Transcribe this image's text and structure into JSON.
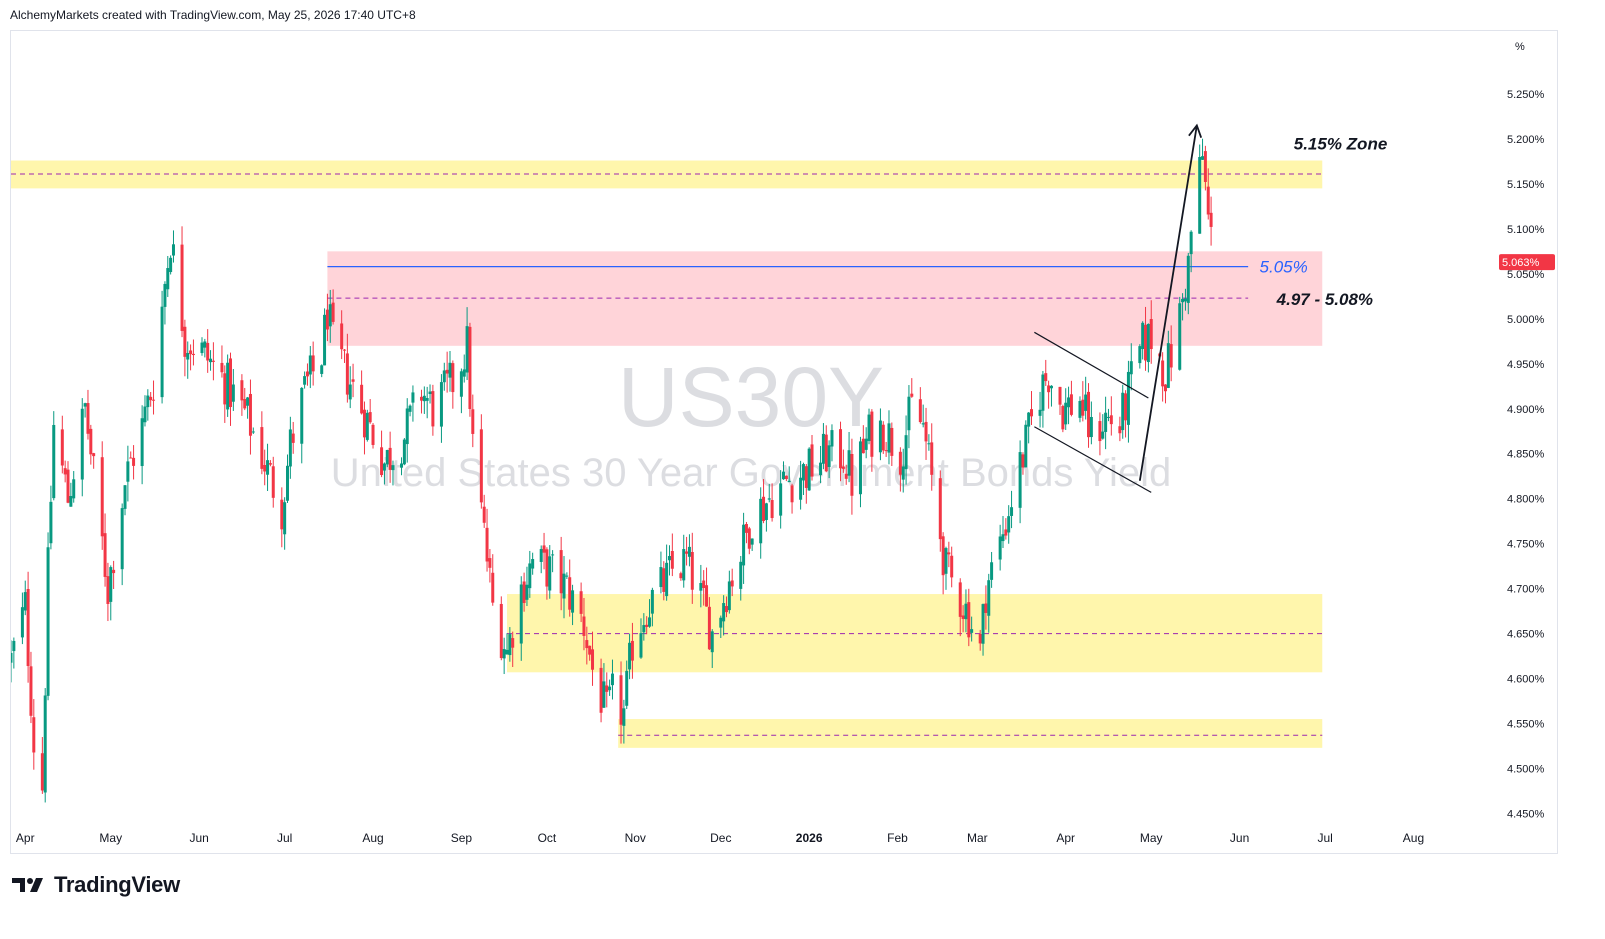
{
  "header": {
    "credit": "AlchemyMarkets created with TradingView.com, May 25, 2026 17:40 UTC+8"
  },
  "footer": {
    "brand": "TradingView",
    "logo_icon": "tradingview-logo-icon"
  },
  "colors": {
    "up": "#089981",
    "down": "#f23645",
    "supply_zone": "#fff59d",
    "resistance_zone": "#ffcdd2",
    "level_line": "#2962ff",
    "dashed_line": "#9c27b0",
    "last_price_bg": "#f23645"
  },
  "chart_data": {
    "type": "candlestick",
    "symbol_watermark": "US30Y",
    "description_watermark": "United States 30 Year Government Bonds Yield",
    "y_unit": "%",
    "ylim": [
      4.435,
      5.32
    ],
    "y_ticks": [
      "5.250%",
      "5.200%",
      "5.150%",
      "5.100%",
      "5.050%",
      "5.000%",
      "4.950%",
      "4.900%",
      "4.850%",
      "4.800%",
      "4.750%",
      "4.700%",
      "4.650%",
      "4.600%",
      "4.550%",
      "4.500%",
      "4.450%"
    ],
    "y_tick_values": [
      5.25,
      5.2,
      5.15,
      5.1,
      5.05,
      5.0,
      4.95,
      4.9,
      4.85,
      4.8,
      4.75,
      4.7,
      4.65,
      4.6,
      4.55,
      4.5,
      4.45
    ],
    "x_range": [
      "2025-03-27",
      "2026-08-31"
    ],
    "x_ticks": [
      {
        "label": "Apr",
        "date": "2025-04-01"
      },
      {
        "label": "May",
        "date": "2025-05-01"
      },
      {
        "label": "Jun",
        "date": "2025-06-01"
      },
      {
        "label": "Jul",
        "date": "2025-07-01"
      },
      {
        "label": "Aug",
        "date": "2025-08-01"
      },
      {
        "label": "Sep",
        "date": "2025-09-01"
      },
      {
        "label": "Oct",
        "date": "2025-10-01"
      },
      {
        "label": "Nov",
        "date": "2025-11-01"
      },
      {
        "label": "Dec",
        "date": "2025-12-01"
      },
      {
        "label": "2026",
        "date": "2026-01-01"
      },
      {
        "label": "Feb",
        "date": "2026-02-01"
      },
      {
        "label": "Mar",
        "date": "2026-03-01"
      },
      {
        "label": "Apr",
        "date": "2026-04-01"
      },
      {
        "label": "May",
        "date": "2026-05-01"
      },
      {
        "label": "Jun",
        "date": "2026-06-01"
      },
      {
        "label": "Jul",
        "date": "2026-07-01"
      },
      {
        "label": "Aug",
        "date": "2026-08-01"
      }
    ],
    "last_price": 5.063,
    "last_price_label": "5.063%",
    "close_path": [
      [
        "2025-03-27",
        4.62
      ],
      [
        "2025-04-01",
        4.68
      ],
      [
        "2025-04-04",
        4.53
      ],
      [
        "2025-04-07",
        4.48
      ],
      [
        "2025-04-09",
        4.72
      ],
      [
        "2025-04-11",
        4.88
      ],
      [
        "2025-04-16",
        4.8
      ],
      [
        "2025-04-22",
        4.9
      ],
      [
        "2025-04-30",
        4.7
      ],
      [
        "2025-05-06",
        4.82
      ],
      [
        "2025-05-12",
        4.88
      ],
      [
        "2025-05-16",
        4.93
      ],
      [
        "2025-05-20",
        5.04
      ],
      [
        "2025-05-22",
        5.09
      ],
      [
        "2025-05-27",
        4.98
      ],
      [
        "2025-06-03",
        4.96
      ],
      [
        "2025-06-10",
        4.93
      ],
      [
        "2025-06-18",
        4.89
      ],
      [
        "2025-06-24",
        4.84
      ],
      [
        "2025-06-30",
        4.79
      ],
      [
        "2025-07-03",
        4.86
      ],
      [
        "2025-07-08",
        4.92
      ],
      [
        "2025-07-14",
        4.96
      ],
      [
        "2025-07-16",
        5.01
      ],
      [
        "2025-07-18",
        4.97
      ],
      [
        "2025-07-24",
        4.93
      ],
      [
        "2025-07-31",
        4.88
      ],
      [
        "2025-08-05",
        4.84
      ],
      [
        "2025-08-12",
        4.87
      ],
      [
        "2025-08-18",
        4.92
      ],
      [
        "2025-08-22",
        4.9
      ],
      [
        "2025-08-29",
        4.93
      ],
      [
        "2025-09-03",
        4.97
      ],
      [
        "2025-09-05",
        4.86
      ],
      [
        "2025-09-09",
        4.76
      ],
      [
        "2025-09-12",
        4.68
      ],
      [
        "2025-09-17",
        4.63
      ],
      [
        "2025-09-22",
        4.7
      ],
      [
        "2025-09-26",
        4.73
      ],
      [
        "2025-10-02",
        4.72
      ],
      [
        "2025-10-08",
        4.7
      ],
      [
        "2025-10-14",
        4.66
      ],
      [
        "2025-10-17",
        4.61
      ],
      [
        "2025-10-22",
        4.56
      ],
      [
        "2025-10-24",
        4.58
      ],
      [
        "2025-10-28",
        4.56
      ],
      [
        "2025-10-31",
        4.64
      ],
      [
        "2025-11-05",
        4.68
      ],
      [
        "2025-11-10",
        4.7
      ],
      [
        "2025-11-14",
        4.72
      ],
      [
        "2025-11-19",
        4.73
      ],
      [
        "2025-11-24",
        4.69
      ],
      [
        "2025-11-28",
        4.65
      ],
      [
        "2025-12-03",
        4.7
      ],
      [
        "2025-12-08",
        4.74
      ],
      [
        "2025-12-12",
        4.78
      ],
      [
        "2025-12-18",
        4.8
      ],
      [
        "2025-12-24",
        4.82
      ],
      [
        "2025-12-31",
        4.83
      ],
      [
        "2026-01-07",
        4.85
      ],
      [
        "2026-01-13",
        4.85
      ],
      [
        "2026-01-16",
        4.82
      ],
      [
        "2026-01-22",
        4.87
      ],
      [
        "2026-01-27",
        4.88
      ],
      [
        "2026-02-02",
        4.85
      ],
      [
        "2026-02-06",
        4.9
      ],
      [
        "2026-02-10",
        4.88
      ],
      [
        "2026-02-13",
        4.82
      ],
      [
        "2026-02-18",
        4.72
      ],
      [
        "2026-02-23",
        4.69
      ],
      [
        "2026-02-26",
        4.67
      ],
      [
        "2026-03-02",
        4.63
      ],
      [
        "2026-03-04",
        4.7
      ],
      [
        "2026-03-09",
        4.75
      ],
      [
        "2026-03-13",
        4.8
      ],
      [
        "2026-03-18",
        4.86
      ],
      [
        "2026-03-23",
        4.92
      ],
      [
        "2026-03-26",
        4.94
      ],
      [
        "2026-03-31",
        4.9
      ],
      [
        "2026-04-06",
        4.91
      ],
      [
        "2026-04-10",
        4.87
      ],
      [
        "2026-04-15",
        4.89
      ],
      [
        "2026-04-20",
        4.88
      ],
      [
        "2026-04-24",
        4.93
      ],
      [
        "2026-04-28",
        4.97
      ],
      [
        "2026-05-01",
        4.98
      ],
      [
        "2026-05-06",
        4.94
      ],
      [
        "2026-05-09",
        4.97
      ],
      [
        "2026-05-12",
        5.02
      ],
      [
        "2026-05-14",
        5.06
      ],
      [
        "2026-05-16",
        5.13
      ],
      [
        "2026-05-19",
        5.18
      ],
      [
        "2026-05-21",
        5.11
      ],
      [
        "2026-05-22",
        5.09
      ],
      [
        "2026-05-24",
        5.063
      ]
    ],
    "zones": [
      {
        "name": "top-supply-zone",
        "y_low": 5.145,
        "y_high": 5.176,
        "x_start": "2025-03-27",
        "x_end": "2026-06-30",
        "color": "#fff59d",
        "mid_line": 5.161
      },
      {
        "name": "resistance-zone",
        "y_low": 4.97,
        "y_high": 5.075,
        "x_start": "2025-07-16",
        "x_end": "2026-06-30",
        "color": "#ffcdd2",
        "mid_line": 5.023
      },
      {
        "name": "lower-support-zone",
        "y_low": 4.607,
        "y_high": 4.694,
        "x_start": "2025-09-17",
        "x_end": "2026-06-30",
        "color": "#fff59d",
        "mid_line": 4.65
      },
      {
        "name": "bottom-support-zone",
        "y_low": 4.523,
        "y_high": 4.555,
        "x_start": "2025-10-26",
        "x_end": "2026-06-30",
        "color": "#fff59d",
        "mid_line": 4.537
      }
    ],
    "level_line": {
      "y": 5.058,
      "x_start": "2025-07-16",
      "x_end": "2026-06-04"
    },
    "mid_line_x_end": {
      "top-supply-zone": "2026-06-30",
      "resistance-zone": "2026-06-04",
      "lower-support-zone": "2026-06-30",
      "bottom-support-zone": "2026-06-30"
    },
    "annotations": [
      {
        "text": "5.15% Zone",
        "x": "2026-06-20",
        "y": 5.195,
        "style": "bold-italic",
        "color": "#131722"
      },
      {
        "text": "5.05%",
        "x": "2026-06-08",
        "y": 5.058,
        "style": "italic",
        "color": "#2962ff"
      },
      {
        "text": "4.97 - 5.08%",
        "x": "2026-06-14",
        "y": 5.022,
        "style": "bold-italic",
        "color": "#131722"
      }
    ],
    "flag": {
      "upper": [
        [
          "2026-03-21",
          4.985
        ],
        [
          "2026-04-30",
          4.912
        ]
      ],
      "lower": [
        [
          "2026-03-21",
          4.88
        ],
        [
          "2026-05-01",
          4.807
        ]
      ]
    },
    "arrow": {
      "from": [
        "2026-04-27",
        4.82
      ],
      "to": [
        "2026-05-17",
        5.215
      ]
    }
  }
}
